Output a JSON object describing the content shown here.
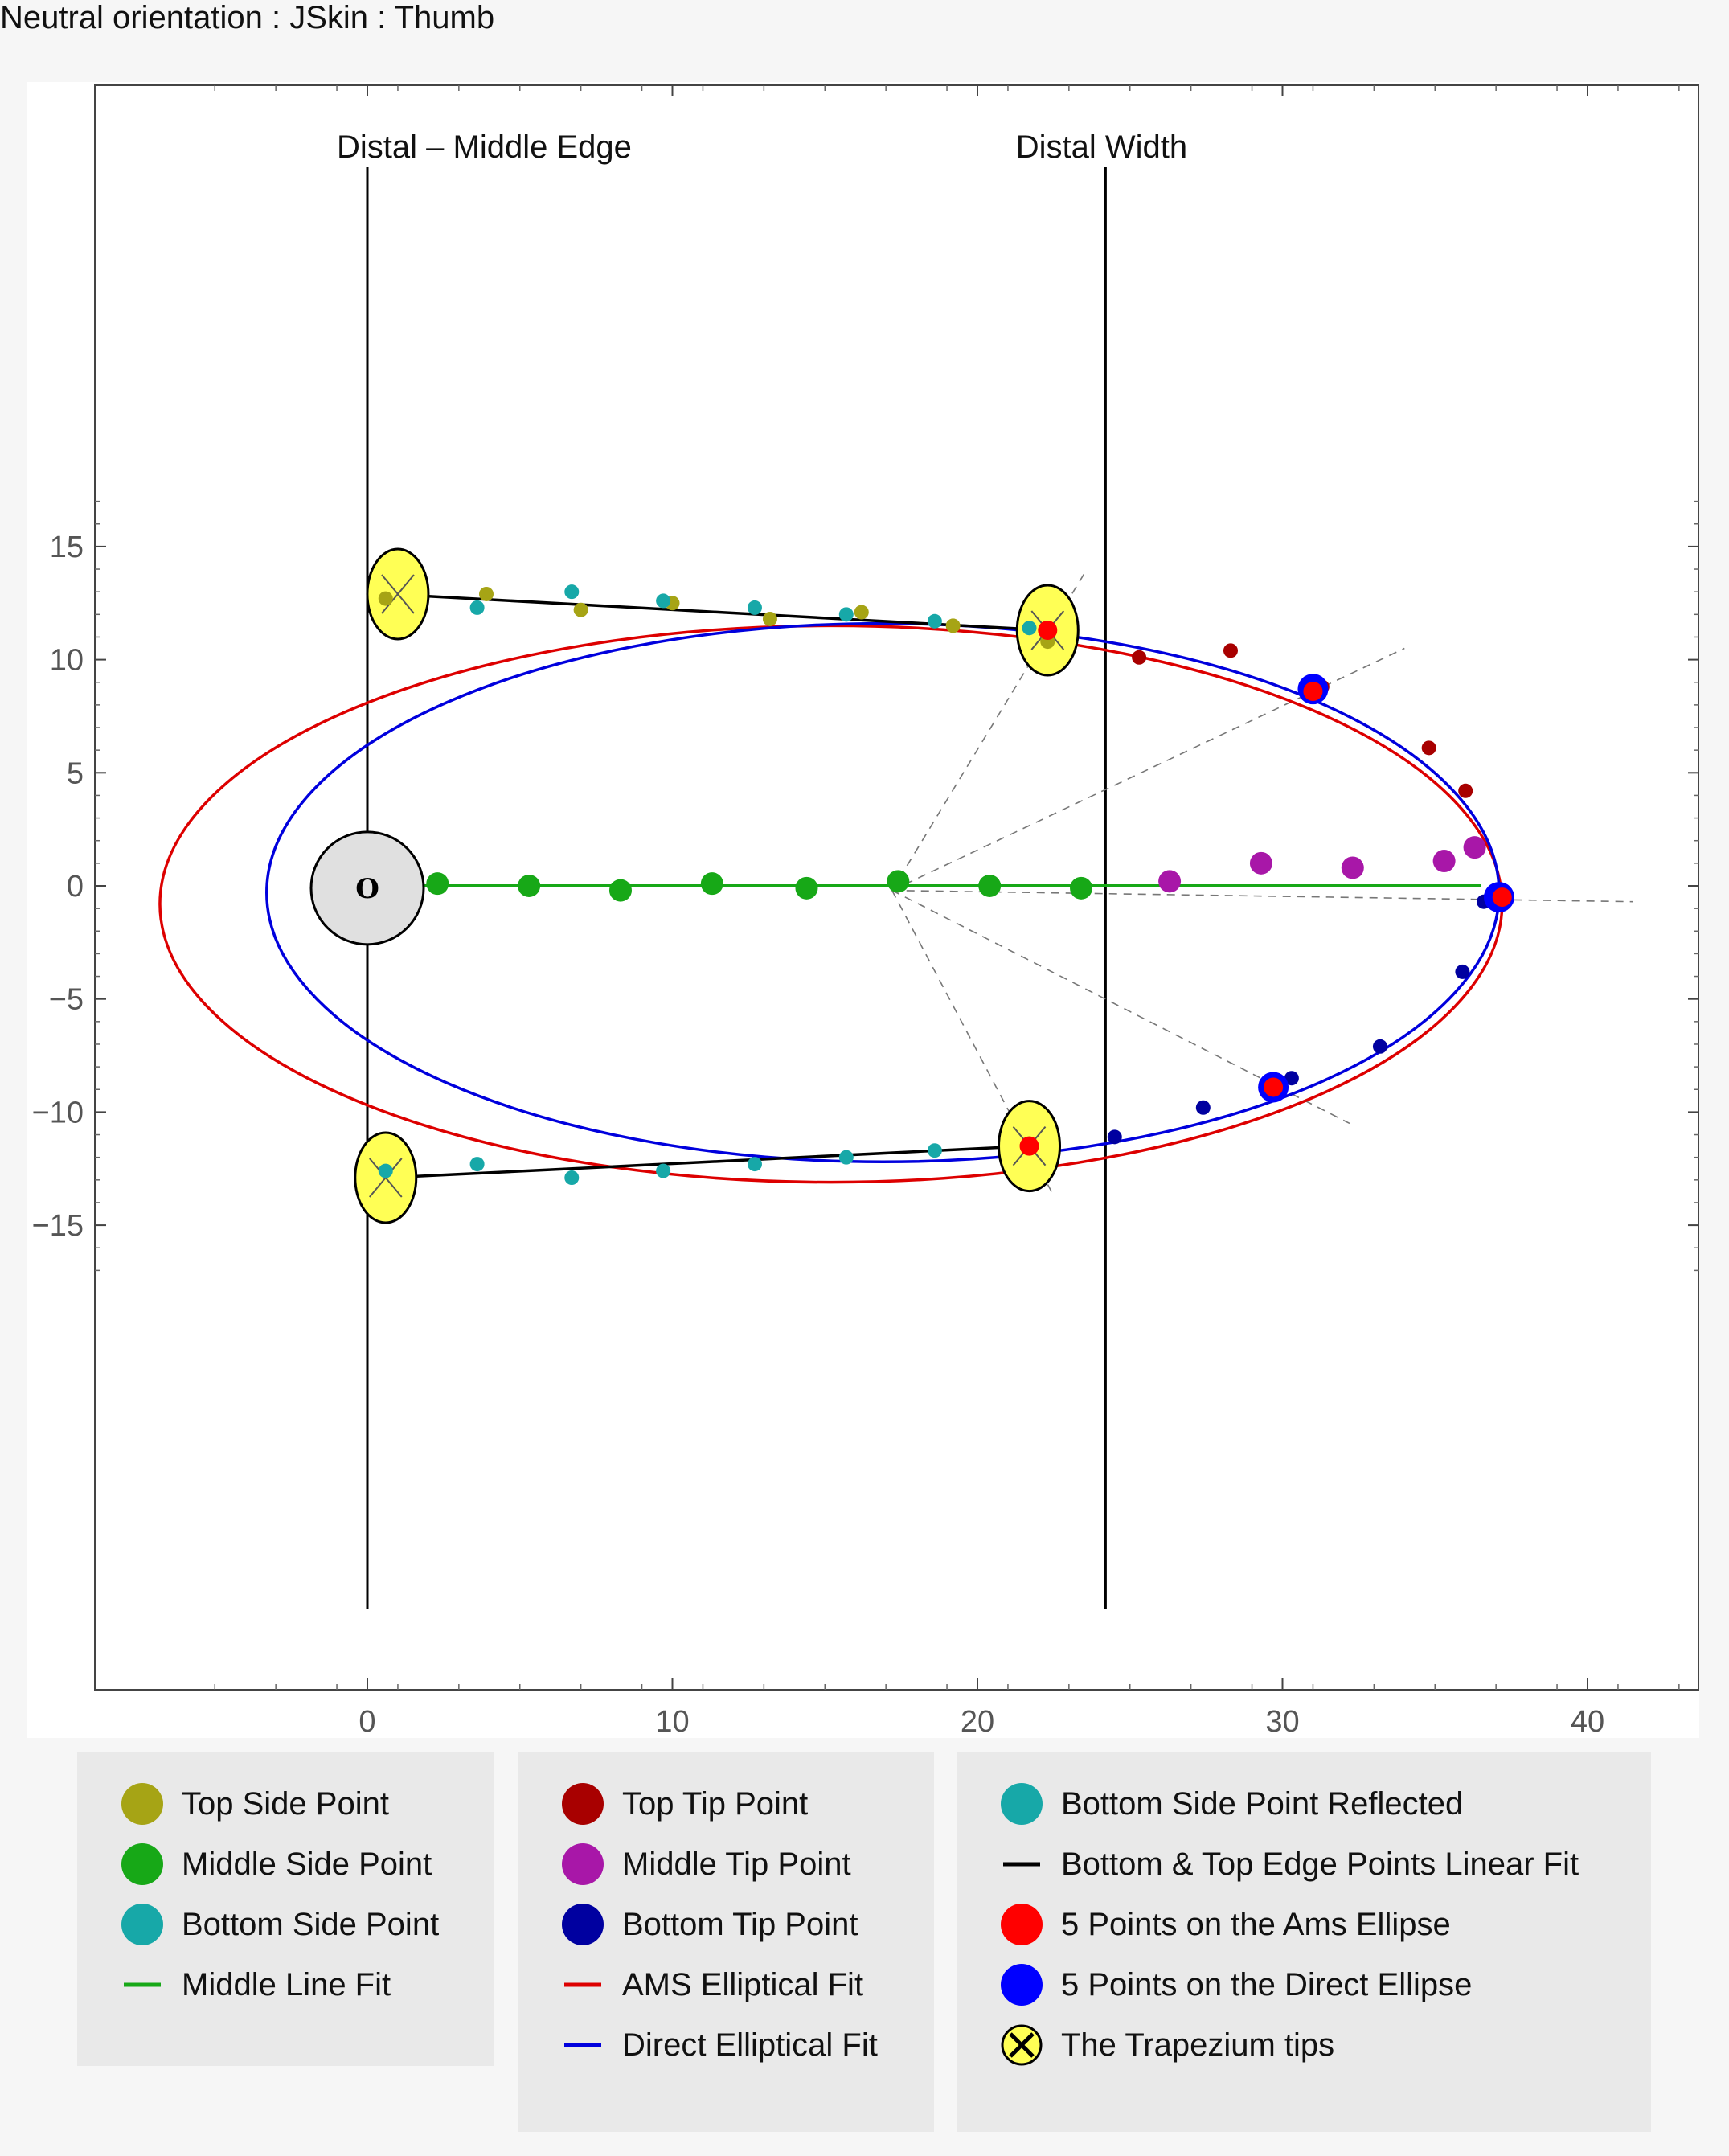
{
  "page_title": "Neutral orientation : JSkin : Thumb",
  "chart_data": {
    "type": "scatter",
    "title": "",
    "xlabel": "",
    "ylabel": "",
    "xlim": [
      -9,
      44
    ],
    "ylim": [
      -17.5,
      17.5
    ],
    "x_ticks": [
      0,
      10,
      20,
      30,
      40
    ],
    "y_ticks": [
      15,
      10,
      5,
      0,
      -5,
      -10,
      -15
    ],
    "x_tick_labels": [
      "0",
      "10",
      "20",
      "30",
      "40"
    ],
    "y_tick_labels": [
      "15",
      "10",
      "5",
      "0",
      "−5",
      "−10",
      "−15"
    ],
    "grid": false,
    "legend_position": "bottom",
    "vertical_lines": [
      {
        "label": "Distal – Middle Edge",
        "x": 0
      },
      {
        "label": "Distal Width",
        "x": 24.2
      }
    ],
    "origin_marker": {
      "label": "O",
      "x": 0,
      "y": -0.1
    },
    "series": [
      {
        "name": "Top Side Point",
        "color": "#a6a415",
        "kind": "points",
        "size": "small",
        "points": [
          [
            0.6,
            12.7
          ],
          [
            3.9,
            12.9
          ],
          [
            7,
            12.2
          ],
          [
            10,
            12.5
          ],
          [
            13.2,
            11.8
          ],
          [
            16.2,
            12.1
          ],
          [
            19.2,
            11.5
          ],
          [
            22.3,
            10.8
          ]
        ]
      },
      {
        "name": "Middle Side Point",
        "color": "#17a817",
        "kind": "points",
        "size": "large",
        "points": [
          [
            2.3,
            0.1
          ],
          [
            5.3,
            0
          ],
          [
            8.3,
            -0.2
          ],
          [
            11.3,
            0.1
          ],
          [
            14.4,
            -0.1
          ],
          [
            17.4,
            0.2
          ],
          [
            20.4,
            0
          ],
          [
            23.4,
            -0.1
          ]
        ]
      },
      {
        "name": "Bottom Side Point",
        "color": "#17a8a8",
        "kind": "points",
        "size": "small",
        "points": [
          [
            0.6,
            -12.6
          ],
          [
            3.6,
            -12.3
          ],
          [
            6.7,
            -12.9
          ],
          [
            9.7,
            -12.6
          ],
          [
            12.7,
            -12.3
          ],
          [
            15.7,
            -12
          ],
          [
            18.6,
            -11.7
          ],
          [
            21.7,
            -11.4
          ]
        ]
      },
      {
        "name": "Middle Line Fit",
        "color": "#17a817",
        "kind": "line",
        "points": [
          [
            0,
            0
          ],
          [
            36.5,
            0
          ]
        ]
      },
      {
        "name": "Top Tip Point",
        "color": "#a80000",
        "kind": "points",
        "size": "small",
        "points": [
          [
            25.3,
            10.1
          ],
          [
            28.3,
            10.4
          ],
          [
            31.3,
            8.8
          ],
          [
            34.8,
            6.1
          ],
          [
            36,
            4.2
          ]
        ]
      },
      {
        "name": "Middle Tip Point",
        "color": "#a817a8",
        "kind": "points",
        "size": "large",
        "points": [
          [
            26.3,
            0.2
          ],
          [
            29.3,
            1
          ],
          [
            32.3,
            0.8
          ],
          [
            35.3,
            1.1
          ],
          [
            36.3,
            1.7
          ]
        ]
      },
      {
        "name": "Bottom Tip Point",
        "color": "#0000a0",
        "kind": "points",
        "size": "small",
        "points": [
          [
            24.5,
            -11.1
          ],
          [
            27.4,
            -9.8
          ],
          [
            30.3,
            -8.5
          ],
          [
            33.2,
            -7.1
          ],
          [
            35.9,
            -3.8
          ],
          [
            36.6,
            -0.7
          ]
        ]
      },
      {
        "name": "AMS Elliptical Fit",
        "color": "#dd0000",
        "kind": "ellipse",
        "center": [
          15.2,
          -0.8
        ],
        "semi_axes": [
          22.0,
          12.3
        ]
      },
      {
        "name": "Direct Elliptical Fit",
        "color": "#0000dd",
        "kind": "ellipse",
        "center": [
          16.9,
          -0.3
        ],
        "semi_axes": [
          20.2,
          11.9
        ]
      },
      {
        "name": "Bottom Side Point Reflected",
        "color": "#17a8a8",
        "kind": "points",
        "size": "small",
        "points": [
          [
            3.6,
            12.3
          ],
          [
            6.7,
            13
          ],
          [
            9.7,
            12.6
          ],
          [
            12.7,
            12.3
          ],
          [
            15.7,
            12
          ],
          [
            18.6,
            11.7
          ],
          [
            21.7,
            11.4
          ]
        ]
      },
      {
        "name": "Bottom & Top Edge Points Linear Fit",
        "color": "#000000",
        "kind": "lines",
        "segments": [
          [
            [
              0.7,
              12.9
            ],
            [
              22.3,
              11.3
            ]
          ],
          [
            [
              0.7,
              -12.9
            ],
            [
              21.7,
              -11.5
            ]
          ]
        ]
      },
      {
        "name": "5 Points on the Ams Ellipse",
        "color": "#ff0000",
        "kind": "points",
        "size": "medium",
        "points": [
          [
            31,
            8.6
          ],
          [
            37.2,
            -0.5
          ],
          [
            29.7,
            -8.9
          ],
          [
            22.3,
            11.3
          ],
          [
            21.7,
            -11.5
          ]
        ]
      },
      {
        "name": "5 Points on the Direct Ellipse",
        "color": "#0000ff",
        "kind": "points",
        "size": "xlarge",
        "points": [
          [
            31,
            8.7
          ],
          [
            37.1,
            -0.5
          ],
          [
            29.7,
            -8.9
          ]
        ]
      },
      {
        "name": "The Trapezium tips",
        "color": "#ffff55",
        "kind": "trapezium",
        "points": [
          [
            1,
            12.9
          ],
          [
            22.3,
            11.3
          ],
          [
            0.6,
            -12.9
          ],
          [
            21.7,
            -11.5
          ]
        ]
      }
    ],
    "dashed_rays": {
      "origin": [
        17.2,
        -0.2
      ],
      "ends": [
        [
          23.5,
          13.8
        ],
        [
          34,
          10.5
        ],
        [
          41.5,
          -0.7
        ],
        [
          32.2,
          -10.5
        ],
        [
          22.5,
          -13.7
        ]
      ]
    }
  },
  "legend": {
    "columns": [
      [
        {
          "label": "Top Side Point",
          "symbol": "dot",
          "color": "#a6a415"
        },
        {
          "label": "Middle Side Point",
          "symbol": "dot",
          "color": "#17a817"
        },
        {
          "label": "Bottom Side Point",
          "symbol": "dot",
          "color": "#17a8a8"
        },
        {
          "label": "Middle Line Fit",
          "symbol": "line",
          "color": "#17a817"
        }
      ],
      [
        {
          "label": "Top Tip Point",
          "symbol": "dot",
          "color": "#a80000"
        },
        {
          "label": "Middle Tip Point",
          "symbol": "dot",
          "color": "#a817a8"
        },
        {
          "label": "Bottom Tip Point",
          "symbol": "dot",
          "color": "#0000a0"
        },
        {
          "label": "AMS Elliptical Fit",
          "symbol": "line",
          "color": "#dd0000"
        },
        {
          "label": "Direct Elliptical Fit",
          "symbol": "line",
          "color": "#0000dd"
        }
      ],
      [
        {
          "label": "Bottom Side Point Reflected",
          "symbol": "dot",
          "color": "#17a8a8"
        },
        {
          "label": "Bottom & Top Edge Points Linear Fit",
          "symbol": "line",
          "color": "#000000"
        },
        {
          "label": "5 Points on the Ams Ellipse",
          "symbol": "dot",
          "color": "#ff0000"
        },
        {
          "label": "5 Points on the Direct Ellipse",
          "symbol": "dot",
          "color": "#0000ff"
        },
        {
          "label": "The Trapezium tips",
          "symbol": "cross",
          "color": "#ffff55"
        }
      ]
    ]
  }
}
